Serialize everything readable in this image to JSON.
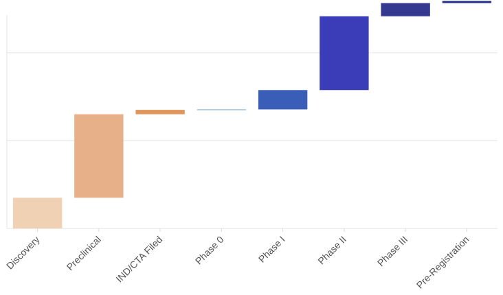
{
  "chart_data": {
    "type": "waterfall",
    "title": "",
    "xlabel": "",
    "ylabel": "",
    "categories": [
      "Discovery",
      "Preclinical",
      "IND/CTA Filed",
      "Phase 0",
      "Phase I",
      "Phase II",
      "Phase III",
      "Pre-Registration"
    ],
    "values": [
      3.5,
      9.5,
      0.5,
      0.05,
      2.2,
      8.4,
      1.5,
      0.25
    ],
    "ylim": [
      0,
      26
    ],
    "y_gridlines": [
      10,
      20
    ],
    "y_tick_labels_visible": false,
    "grid": true,
    "colors": [
      "#f1d1b4",
      "#e8b088",
      "#e0955a",
      "#6fa3cc",
      "#3a5eb8",
      "#3a3cb8",
      "#35398f",
      "#2a3590"
    ]
  }
}
